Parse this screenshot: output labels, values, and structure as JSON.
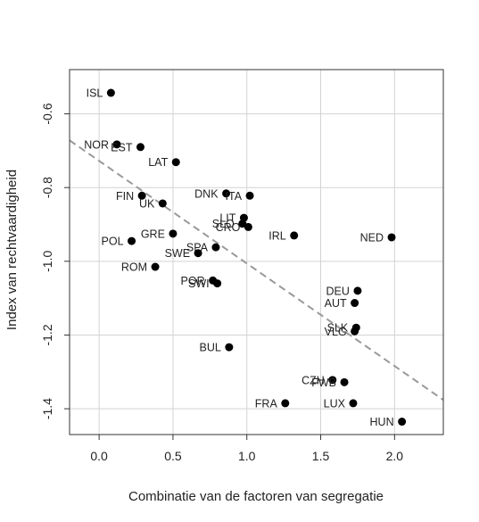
{
  "chart_data": {
    "type": "scatter",
    "title": "",
    "xlabel": "Combinatie van de factoren van segregatie",
    "ylabel": "Index van rechtvaardigheid",
    "xlim": [
      -0.2,
      2.33
    ],
    "ylim": [
      -1.47,
      -0.48
    ],
    "xticks": [
      0.0,
      0.5,
      1.0,
      1.5,
      2.0
    ],
    "xtick_labels": [
      "0.0",
      "0.5",
      "1.0",
      "1.5",
      "2.0"
    ],
    "yticks": [
      -0.6,
      -0.8,
      -1.0,
      -1.2,
      -1.4
    ],
    "ytick_labels": [
      "-0.6",
      "-0.8",
      "-1.0",
      "-1.2",
      "-1.4"
    ],
    "grid": true,
    "trendline": {
      "style": "dashed",
      "color": "#999999",
      "x": [
        -0.2,
        2.33
      ],
      "y": [
        -0.672,
        -1.376
      ]
    },
    "points": [
      {
        "label": "ISL",
        "x": 0.08,
        "y": -0.543
      },
      {
        "label": "NOR",
        "x": 0.12,
        "y": -0.683
      },
      {
        "label": "EST",
        "x": 0.28,
        "y": -0.69
      },
      {
        "label": "LAT",
        "x": 0.52,
        "y": -0.731
      },
      {
        "label": "FIN",
        "x": 0.29,
        "y": -0.822
      },
      {
        "label": "UK",
        "x": 0.43,
        "y": -0.843
      },
      {
        "label": "DNK",
        "x": 0.86,
        "y": -0.816
      },
      {
        "label": "ITA",
        "x": 1.02,
        "y": -0.822
      },
      {
        "label": "LIT",
        "x": 0.98,
        "y": -0.882
      },
      {
        "label": "SLO",
        "x": 0.97,
        "y": -0.898
      },
      {
        "label": "CRO",
        "x": 1.01,
        "y": -0.907
      },
      {
        "label": "GRE",
        "x": 0.5,
        "y": -0.925
      },
      {
        "label": "POL",
        "x": 0.22,
        "y": -0.945
      },
      {
        "label": "IRL",
        "x": 1.32,
        "y": -0.93
      },
      {
        "label": "NED",
        "x": 1.98,
        "y": -0.935
      },
      {
        "label": "SPA",
        "x": 0.79,
        "y": -0.962
      },
      {
        "label": "SWE",
        "x": 0.67,
        "y": -0.978
      },
      {
        "label": "ROM",
        "x": 0.38,
        "y": -1.015
      },
      {
        "label": "POR",
        "x": 0.77,
        "y": -1.052
      },
      {
        "label": "SWI",
        "x": 0.8,
        "y": -1.06
      },
      {
        "label": "DEU",
        "x": 1.75,
        "y": -1.08
      },
      {
        "label": "AUT",
        "x": 1.73,
        "y": -1.113
      },
      {
        "label": "SLK",
        "x": 1.74,
        "y": -1.18
      },
      {
        "label": "VLG",
        "x": 1.73,
        "y": -1.19
      },
      {
        "label": "BUL",
        "x": 0.88,
        "y": -1.233
      },
      {
        "label": "CZH",
        "x": 1.58,
        "y": -1.322
      },
      {
        "label": "FWB",
        "x": 1.66,
        "y": -1.328
      },
      {
        "label": "FRA",
        "x": 1.26,
        "y": -1.385
      },
      {
        "label": "LUX",
        "x": 1.72,
        "y": -1.385
      },
      {
        "label": "HUN",
        "x": 2.05,
        "y": -1.435
      }
    ]
  }
}
